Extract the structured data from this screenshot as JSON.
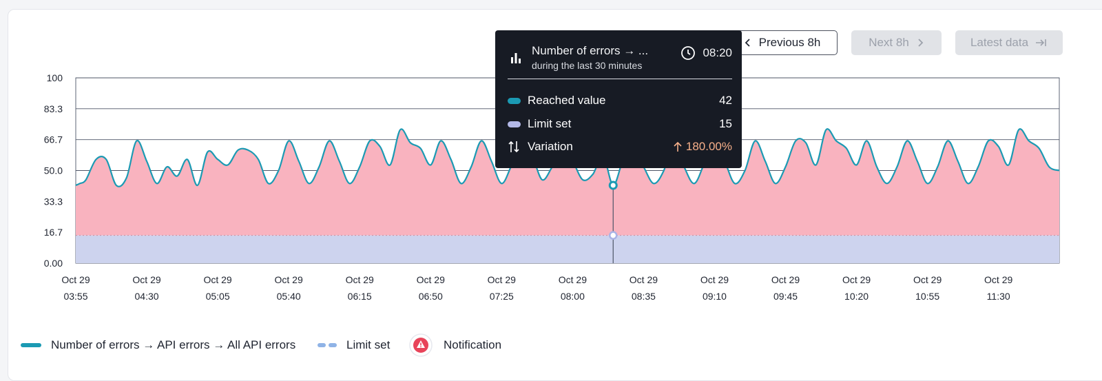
{
  "navigation": {
    "previous_label": "Previous 8h",
    "next_label": "Next 8h",
    "latest_label": "Latest data"
  },
  "tooltip": {
    "title": "Number of errors → ...",
    "subtitle": "during the last 30 minutes",
    "time": "08:20",
    "rows": [
      {
        "label": "Reached value",
        "value": "42"
      },
      {
        "label": "Limit set",
        "value": "15"
      },
      {
        "label": "Variation",
        "value": "180.00%"
      }
    ]
  },
  "legend": {
    "series_label": "Number of errors → API errors → All API errors",
    "limit_label": "Limit set",
    "notification_label": "Notification"
  },
  "colors": {
    "line": "#1b9ab3",
    "area": "#f9b3bf",
    "limit": "#cdd3ee",
    "limit_legend": "#8fb3e6",
    "tooltip_bg": "#171b24",
    "variation_up": "#f7b08a",
    "notification": "#e8445a"
  },
  "chart_data": {
    "type": "area",
    "title": "",
    "xlabel": "",
    "ylabel": "",
    "ylim": [
      0,
      100
    ],
    "yticks": [
      "100",
      "83.3",
      "66.7",
      "50.0",
      "33.3",
      "16.7",
      "0.00"
    ],
    "xticks": [
      [
        "Oct 29",
        "03:55"
      ],
      [
        "Oct 29",
        "04:30"
      ],
      [
        "Oct 29",
        "05:05"
      ],
      [
        "Oct 29",
        "05:40"
      ],
      [
        "Oct 29",
        "06:15"
      ],
      [
        "Oct 29",
        "06:50"
      ],
      [
        "Oct 29",
        "07:25"
      ],
      [
        "Oct 29",
        "08:00"
      ],
      [
        "Oct 29",
        "08:35"
      ],
      [
        "Oct 29",
        "09:10"
      ],
      [
        "Oct 29",
        "09:45"
      ],
      [
        "Oct 29",
        "10:20"
      ],
      [
        "Oct 29",
        "10:55"
      ],
      [
        "Oct 29",
        "11:30"
      ]
    ],
    "series": [
      {
        "name": "Number of errors → API errors → All API errors",
        "x": [
          "03:55",
          "03:57",
          "04:00",
          "04:05",
          "04:10",
          "04:15",
          "04:20",
          "04:25",
          "04:30",
          "04:35",
          "04:40",
          "04:45",
          "04:50",
          "04:55",
          "05:00",
          "05:05",
          "05:10",
          "05:15",
          "05:20",
          "05:25",
          "05:30",
          "05:35",
          "05:40",
          "05:45",
          "05:50",
          "05:55",
          "06:00",
          "06:05",
          "06:10",
          "06:15",
          "06:20",
          "06:25",
          "06:30",
          "06:35",
          "06:40",
          "06:45",
          "06:50",
          "06:55",
          "07:00",
          "07:05",
          "07:10",
          "07:15",
          "07:20",
          "07:25",
          "07:30",
          "07:35",
          "07:40",
          "07:45",
          "07:50",
          "07:55",
          "08:00",
          "08:05",
          "08:10",
          "08:15",
          "08:20",
          "08:25",
          "08:30",
          "08:35",
          "08:40",
          "08:45",
          "08:50",
          "08:55",
          "09:00",
          "09:05",
          "09:10",
          "09:15",
          "09:20",
          "09:25",
          "09:30",
          "09:35",
          "09:40",
          "09:45",
          "09:50",
          "09:55",
          "10:00",
          "10:05",
          "10:10",
          "10:15",
          "10:20",
          "10:25",
          "10:30",
          "10:35",
          "10:40",
          "10:45",
          "10:50",
          "10:55",
          "11:00",
          "11:05",
          "11:10",
          "11:15",
          "11:20",
          "11:25",
          "11:30",
          "11:35",
          "11:40",
          "11:45",
          "11:50",
          "11:55",
          "12:00"
        ],
        "values": [
          42,
          43,
          45,
          56,
          56,
          42,
          46,
          66,
          55,
          43,
          52,
          47,
          56,
          42,
          60,
          56,
          53,
          61,
          61,
          56,
          43,
          50,
          66,
          55,
          43,
          52,
          66,
          55,
          43,
          52,
          66,
          63,
          53,
          72,
          65,
          62,
          53,
          66,
          56,
          43,
          52,
          66,
          55,
          43,
          53,
          64,
          58,
          45,
          52,
          60,
          55,
          45,
          48,
          58,
          42,
          56,
          62,
          52,
          43,
          50,
          66,
          52,
          43,
          54,
          66,
          55,
          43,
          50,
          66,
          55,
          43,
          52,
          66,
          65,
          53,
          72,
          66,
          62,
          53,
          66,
          52,
          43,
          52,
          66,
          55,
          43,
          52,
          66,
          55,
          43,
          52,
          66,
          63,
          53,
          72,
          66,
          62,
          52,
          50
        ]
      },
      {
        "name": "Limit set",
        "value": 15
      }
    ],
    "highlight": {
      "x": "08:20",
      "value": 42,
      "limit": 15
    },
    "grid": true,
    "legend_position": "bottom-left"
  }
}
